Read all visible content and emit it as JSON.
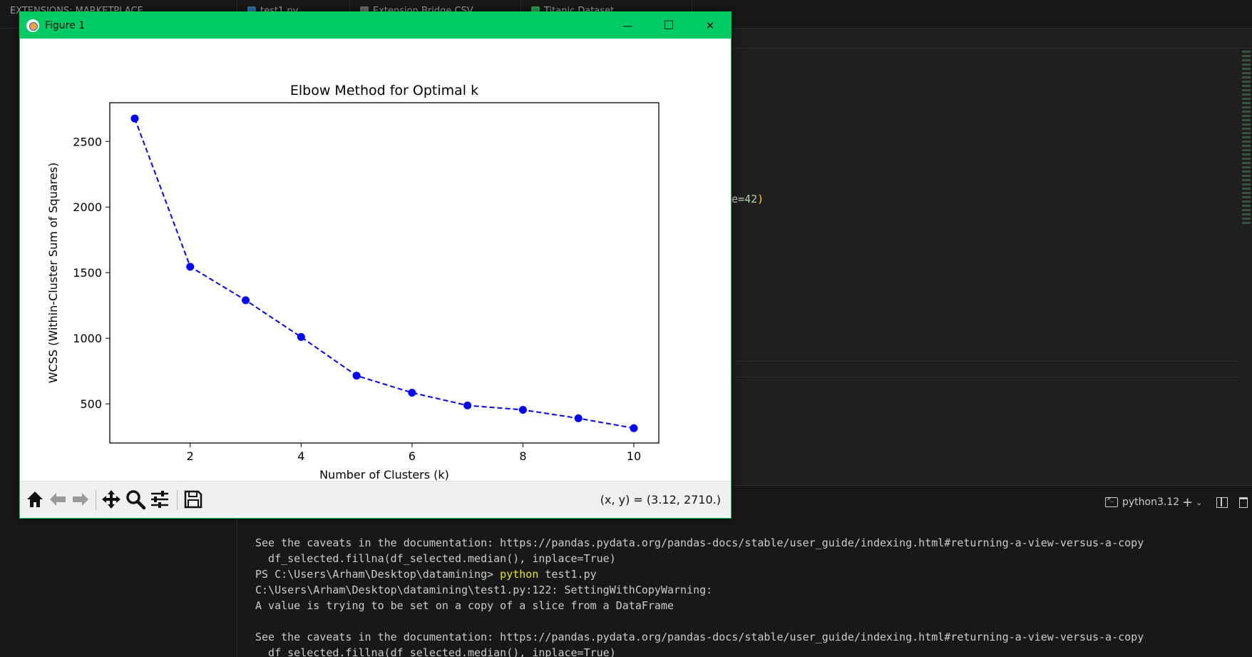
{
  "vscode": {
    "tabs": [
      {
        "label": "EXTENSIONS: MARKETPLACE"
      },
      {
        "label": "test1.py"
      },
      {
        "label": "Extension Bridge CSV"
      },
      {
        "label": "Titanic Dataset"
      }
    ],
    "code_fragment": {
      "pre": "e=",
      "num": "42",
      "paren": ")"
    },
    "terminal_tab": "python3.12",
    "terminal_lines": [
      {
        "text": "See the caveats in the documentation: https://pandas.pydata.org/pandas-docs/stable/user_guide/indexing.html#returning-a-view-versus-a-copy"
      },
      {
        "text": "  df_selected.fillna(df_selected.median(), inplace=True)"
      },
      {
        "prompt": "PS C:\\Users\\Arham\\Desktop\\datamining> ",
        "cmd": "python",
        "args": " test1.py"
      },
      {
        "text": "C:\\Users\\Arham\\Desktop\\datamining\\test1.py:122: SettingWithCopyWarning:"
      },
      {
        "text": "A value is trying to be set on a copy of a slice from a DataFrame"
      },
      {
        "text": ""
      },
      {
        "text": "See the caveats in the documentation: https://pandas.pydata.org/pandas-docs/stable/user_guide/indexing.html#returning-a-view-versus-a-copy"
      },
      {
        "text": "  df_selected.fillna(df_selected.median(), inplace=True)"
      }
    ]
  },
  "figure": {
    "window_title": "Figure 1",
    "minimize_glyph": "—",
    "maximize_glyph": "☐",
    "close_glyph": "✕",
    "coords": "(x, y) = (3.12, 2710.)",
    "toolbar_icons": [
      "home-icon",
      "back-icon",
      "forward-icon",
      "pan-icon",
      "zoom-icon",
      "configure-icon",
      "save-icon"
    ]
  },
  "chart_data": {
    "type": "line",
    "title": "Elbow Method for Optimal k",
    "xlabel": "Number of Clusters (k)",
    "ylabel": "WCSS (Within-Cluster Sum of Squares)",
    "x": [
      1,
      2,
      3,
      4,
      5,
      6,
      7,
      8,
      9,
      10
    ],
    "series": [
      {
        "values": [
          2675,
          1545,
          1290,
          1010,
          715,
          585,
          488,
          455,
          390,
          315
        ]
      }
    ],
    "xlim": [
      0.55,
      10.45
    ],
    "ylim": [
      202,
      2795
    ],
    "xticks": [
      2,
      4,
      6,
      8,
      10
    ],
    "yticks": [
      500,
      1000,
      1500,
      2000,
      2500
    ],
    "line_style": "dashed",
    "marker": "circle",
    "color": "#0000ff",
    "grid": false
  }
}
